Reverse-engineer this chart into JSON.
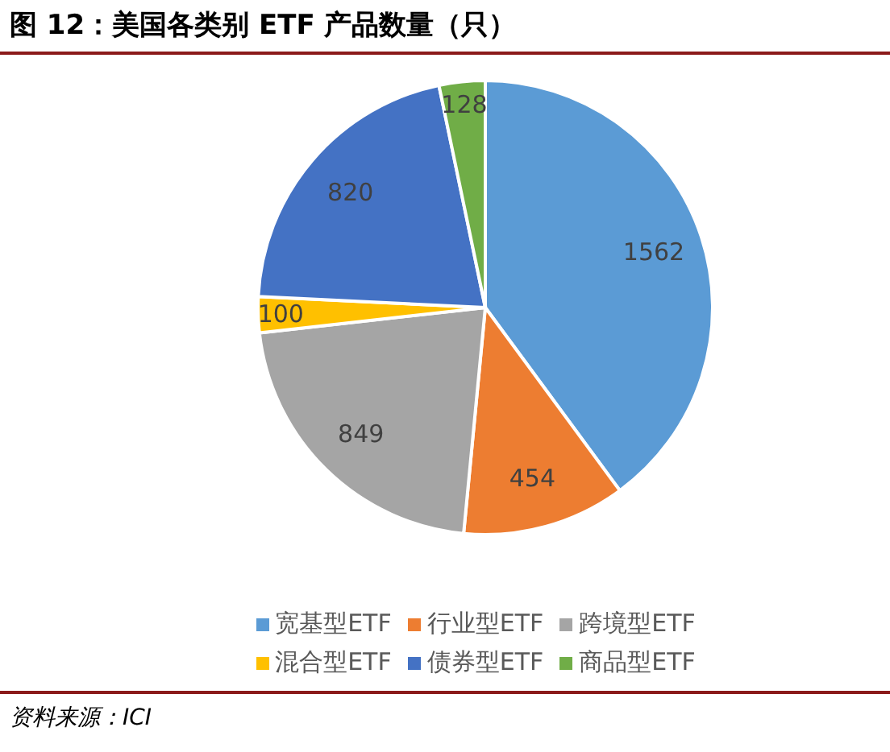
{
  "chart_data": {
    "type": "pie",
    "title": "图 12：美国各类别 ETF 产品数量（只）",
    "categories": [
      "宽基型ETF",
      "行业型ETF",
      "跨境型ETF",
      "混合型ETF",
      "债券型ETF",
      "商品型ETF"
    ],
    "values": [
      1562,
      454,
      849,
      100,
      820,
      128
    ],
    "colors": [
      "#5b9bd5",
      "#ed7d31",
      "#a5a5a5",
      "#ffc000",
      "#4472c4",
      "#70ad47"
    ],
    "data_labels": true,
    "legend": "bottom",
    "annotations": [
      "资料来源：ICI"
    ]
  }
}
